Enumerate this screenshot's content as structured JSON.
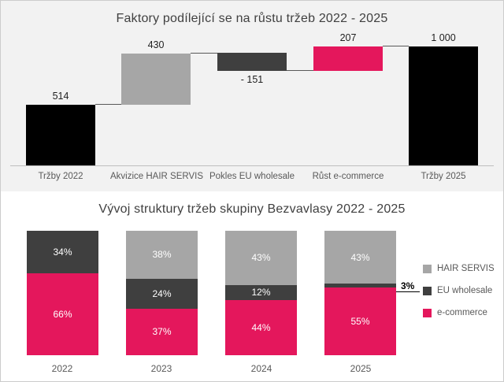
{
  "chart_data": [
    {
      "type": "waterfall",
      "title": "Faktory podílející se na růstu tržeb 2022 - 2025",
      "categories": [
        "Tržby 2022",
        "Akvizice HAIR SERVIS",
        "Pokles EU wholesale",
        "Růst e-commerce",
        "Tržby 2025"
      ],
      "values": [
        514,
        430,
        -151,
        207,
        1000
      ],
      "value_labels": [
        "514",
        "430",
        "- 151",
        "207",
        "1 000"
      ],
      "bar_types": [
        "total",
        "increase",
        "decrease",
        "increase",
        "total"
      ],
      "bar_colors": [
        "#000000",
        "#a6a6a6",
        "#3f3f3f",
        "#e4175c",
        "#000000"
      ],
      "ylim": [
        0,
        1000
      ],
      "grid": false
    },
    {
      "type": "stacked-bar-100",
      "title": "Vývoj struktury tržeb skupiny Bezvavlasy 2022 - 2025",
      "categories": [
        "2022",
        "2023",
        "2024",
        "2025"
      ],
      "series": [
        {
          "name": "e-commerce",
          "color": "#e4175c",
          "values": [
            66,
            37,
            44,
            55
          ]
        },
        {
          "name": "EU wholesale",
          "color": "#3f3f3f",
          "values": [
            34,
            24,
            12,
            3
          ]
        },
        {
          "name": "HAIR SERVIS",
          "color": "#a6a6a6",
          "values": [
            0,
            38,
            43,
            43
          ]
        }
      ],
      "segment_labels": {
        "2022": {
          "e-commerce": "66%",
          "EU wholesale": "34%"
        },
        "2023": {
          "e-commerce": "37%",
          "EU wholesale": "24%",
          "HAIR SERVIS": "38%"
        },
        "2024": {
          "e-commerce": "44%",
          "EU wholesale": "12%",
          "HAIR SERVIS": "43%"
        },
        "2025": {
          "e-commerce": "55%",
          "EU wholesale": "3%",
          "HAIR SERVIS": "43%"
        }
      },
      "legend": [
        "HAIR SERVIS",
        "EU wholesale",
        "e-commerce"
      ],
      "legend_position": "right",
      "grid": false
    }
  ],
  "colors": {
    "accent_pink": "#e4175c",
    "gray": "#a6a6a6",
    "dark_gray": "#3f3f3f",
    "black": "#000000",
    "top_panel_bg": "#f2f2f2",
    "title_text": "#404040",
    "axis_text": "#595959"
  }
}
